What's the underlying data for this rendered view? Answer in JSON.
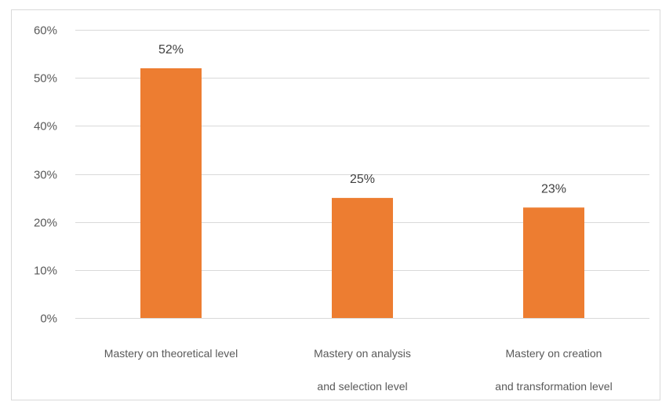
{
  "chart_data": {
    "type": "bar",
    "categories": [
      "Mastery on theoretical level",
      "Mastery on analysis and selection level",
      "Mastery on creation and transformation level"
    ],
    "category_label_lines": [
      [
        "Mastery on theoretical level"
      ],
      [
        "Mastery on analysis",
        "and selection level"
      ],
      [
        "Mastery on creation",
        "and transformation level"
      ]
    ],
    "values": [
      0.52,
      0.25,
      0.23
    ],
    "data_labels": [
      "52%",
      "25%",
      "23%"
    ],
    "ylim": [
      0,
      0.6
    ],
    "yticks": [
      0,
      0.1,
      0.2,
      0.3,
      0.4,
      0.5,
      0.6
    ],
    "ytick_labels": [
      "0%",
      "10%",
      "20%",
      "30%",
      "40%",
      "50%",
      "60%"
    ],
    "grid": true,
    "bar_color": "#ED7D31",
    "grid_color": "#D9D9D9",
    "text_color": "#595959"
  }
}
